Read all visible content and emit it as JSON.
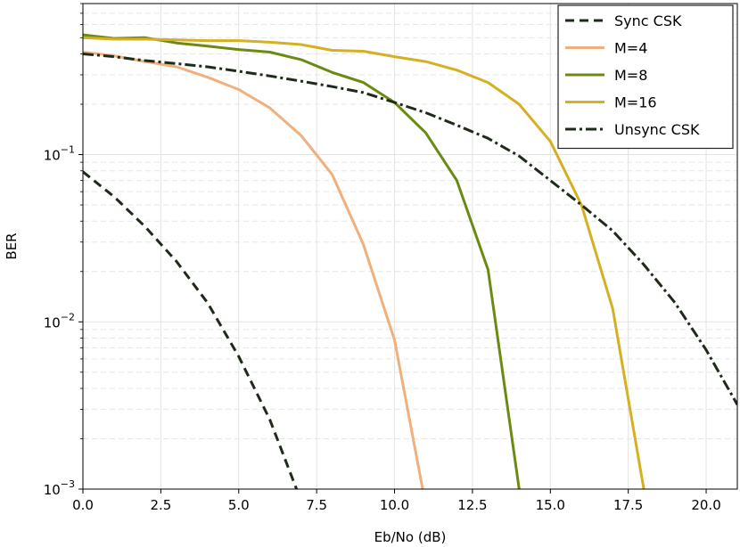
{
  "chart_data": {
    "type": "line",
    "title": "",
    "xlabel": "Eb/No (dB)",
    "ylabel": "BER",
    "xlim": [
      0,
      21
    ],
    "ylim": [
      0.001,
      0.8
    ],
    "yscale": "log",
    "grid": true,
    "legend_position": "top-right",
    "x_ticks": [
      "0.0",
      "2.5",
      "5.0",
      "7.5",
      "10.0",
      "12.5",
      "15.0",
      "17.5",
      "20.0"
    ],
    "y_ticks": [
      {
        "value": 0.1,
        "base": "10",
        "exp": "−1"
      },
      {
        "value": 0.01,
        "base": "10",
        "exp": "−2"
      },
      {
        "value": 0.001,
        "base": "10",
        "exp": "−3"
      }
    ],
    "series": [
      {
        "name": "Sync CSK",
        "color": "#1e2b1a",
        "dash": "10,6",
        "x": [
          0,
          1,
          2,
          3,
          4,
          5,
          6,
          7
        ],
        "y": [
          0.079,
          0.056,
          0.037,
          0.023,
          0.013,
          0.0062,
          0.0026,
          0.00085
        ]
      },
      {
        "name": "M=4",
        "color": "#f0b07c",
        "dash": "",
        "x": [
          0,
          1,
          2,
          3,
          4,
          5,
          6,
          7,
          8,
          9,
          10,
          11
        ],
        "y": [
          0.41,
          0.39,
          0.36,
          0.335,
          0.29,
          0.245,
          0.19,
          0.13,
          0.076,
          0.029,
          0.0078,
          0.0008
        ]
      },
      {
        "name": "M=8",
        "color": "#6b8a12",
        "dash": "",
        "x": [
          0,
          1,
          2,
          3,
          4,
          5,
          6,
          7,
          8,
          9,
          10,
          11,
          12,
          13,
          14,
          14.2
        ],
        "y": [
          0.52,
          0.495,
          0.5,
          0.465,
          0.445,
          0.425,
          0.41,
          0.37,
          0.31,
          0.27,
          0.205,
          0.135,
          0.07,
          0.0205,
          0.001,
          0.0007
        ]
      },
      {
        "name": "M=16",
        "color": "#d4b022",
        "dash": "",
        "x": [
          0,
          1,
          2,
          3,
          4,
          5,
          6,
          7,
          8,
          9,
          10,
          11,
          12,
          13,
          14,
          15,
          16,
          17,
          18,
          18.2
        ],
        "y": [
          0.5,
          0.49,
          0.49,
          0.485,
          0.48,
          0.48,
          0.47,
          0.455,
          0.42,
          0.415,
          0.385,
          0.36,
          0.32,
          0.27,
          0.2,
          0.12,
          0.05,
          0.012,
          0.001,
          0.0007
        ]
      },
      {
        "name": "Unsync CSK",
        "color": "#1e2b1a",
        "dash": "12,4,3,4",
        "x": [
          0,
          1,
          2,
          3,
          4,
          5,
          6,
          7,
          8,
          9,
          10,
          11,
          12,
          13,
          14,
          15,
          16,
          17,
          18,
          19,
          20,
          21
        ],
        "y": [
          0.4,
          0.385,
          0.365,
          0.35,
          0.335,
          0.315,
          0.295,
          0.275,
          0.255,
          0.235,
          0.205,
          0.178,
          0.15,
          0.125,
          0.098,
          0.07,
          0.05,
          0.035,
          0.022,
          0.013,
          0.0068,
          0.0032
        ]
      }
    ]
  }
}
